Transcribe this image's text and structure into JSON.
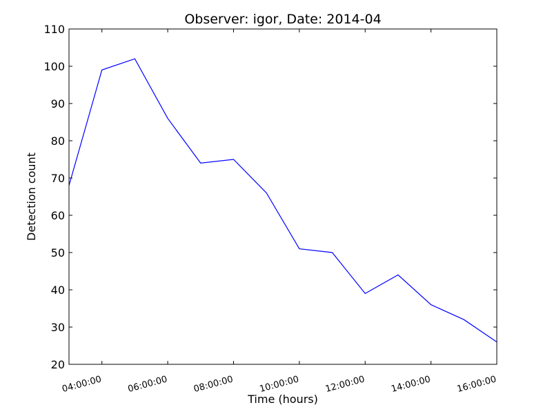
{
  "chart_data": {
    "type": "line",
    "title": "Observer: igor, Date: 2014-04",
    "xlabel": "Time (hours)",
    "ylabel": "Detection count",
    "x": [
      "03:00:00",
      "04:00:00",
      "05:00:00",
      "06:00:00",
      "07:00:00",
      "08:00:00",
      "09:00:00",
      "10:00:00",
      "11:00:00",
      "12:00:00",
      "13:00:00",
      "14:00:00",
      "15:00:00",
      "16:00:00"
    ],
    "series": [
      {
        "values": [
          68,
          99,
          102,
          86,
          74,
          75,
          66,
          51,
          50,
          39,
          44,
          36,
          32,
          26
        ],
        "color": "#0000ff"
      }
    ],
    "xlim": [
      "03:00:00",
      "16:00:00"
    ],
    "ylim": [
      20,
      110
    ],
    "yticks": [
      20,
      30,
      40,
      50,
      60,
      70,
      80,
      90,
      100,
      110
    ],
    "xticks": [
      "04:00:00",
      "06:00:00",
      "08:00:00",
      "10:00:00",
      "12:00:00",
      "14:00:00",
      "16:00:00"
    ],
    "grid": false,
    "legend": false
  }
}
